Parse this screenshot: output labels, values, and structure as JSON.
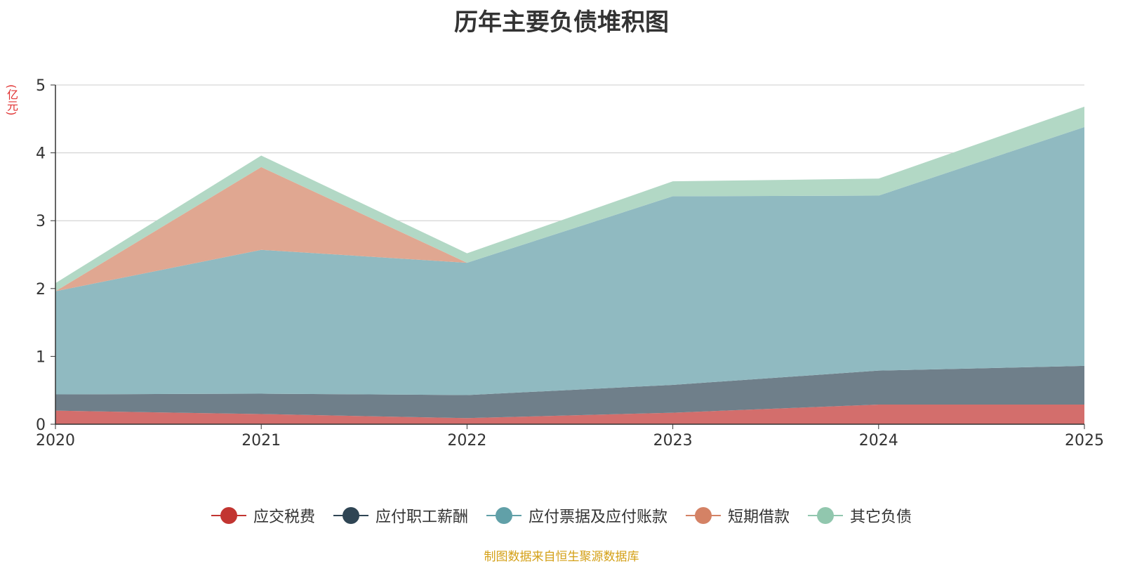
{
  "chart_data": {
    "type": "area",
    "stacked": true,
    "title": "历年主要负债堆积图",
    "ylabel": "(亿元)",
    "xlabel": "",
    "x": [
      "2020",
      "2021",
      "2022",
      "2023",
      "2024",
      "2025"
    ],
    "ylim": [
      0,
      5
    ],
    "yticks": [
      "0",
      "1",
      "2",
      "3",
      "4",
      "5"
    ],
    "grid": true,
    "legend_position": "bottom",
    "series": [
      {
        "name": "应交税费",
        "color": "#c23531",
        "fill": "#d36e6c",
        "values": [
          0.2,
          0.15,
          0.09,
          0.17,
          0.29,
          0.29
        ]
      },
      {
        "name": "应付职工薪酬",
        "color": "#2f4554",
        "fill": "#6f7f8a",
        "values": [
          0.24,
          0.3,
          0.34,
          0.41,
          0.5,
          0.57
        ]
      },
      {
        "name": "应付票据及应付账款",
        "color": "#61a0a8",
        "fill": "#90bac1",
        "values": [
          1.52,
          2.12,
          1.95,
          2.78,
          2.58,
          3.52
        ]
      },
      {
        "name": "短期借款",
        "color": "#d48265",
        "fill": "#e0a791",
        "values": [
          0.0,
          1.22,
          0.0,
          0.0,
          0.0,
          0.0
        ]
      },
      {
        "name": "其它负债",
        "color": "#91c7ae",
        "fill": "#b2d8c5",
        "values": [
          0.12,
          0.17,
          0.14,
          0.22,
          0.25,
          0.3
        ]
      }
    ]
  },
  "footer": {
    "source": "制图数据来自恒生聚源数据库"
  }
}
